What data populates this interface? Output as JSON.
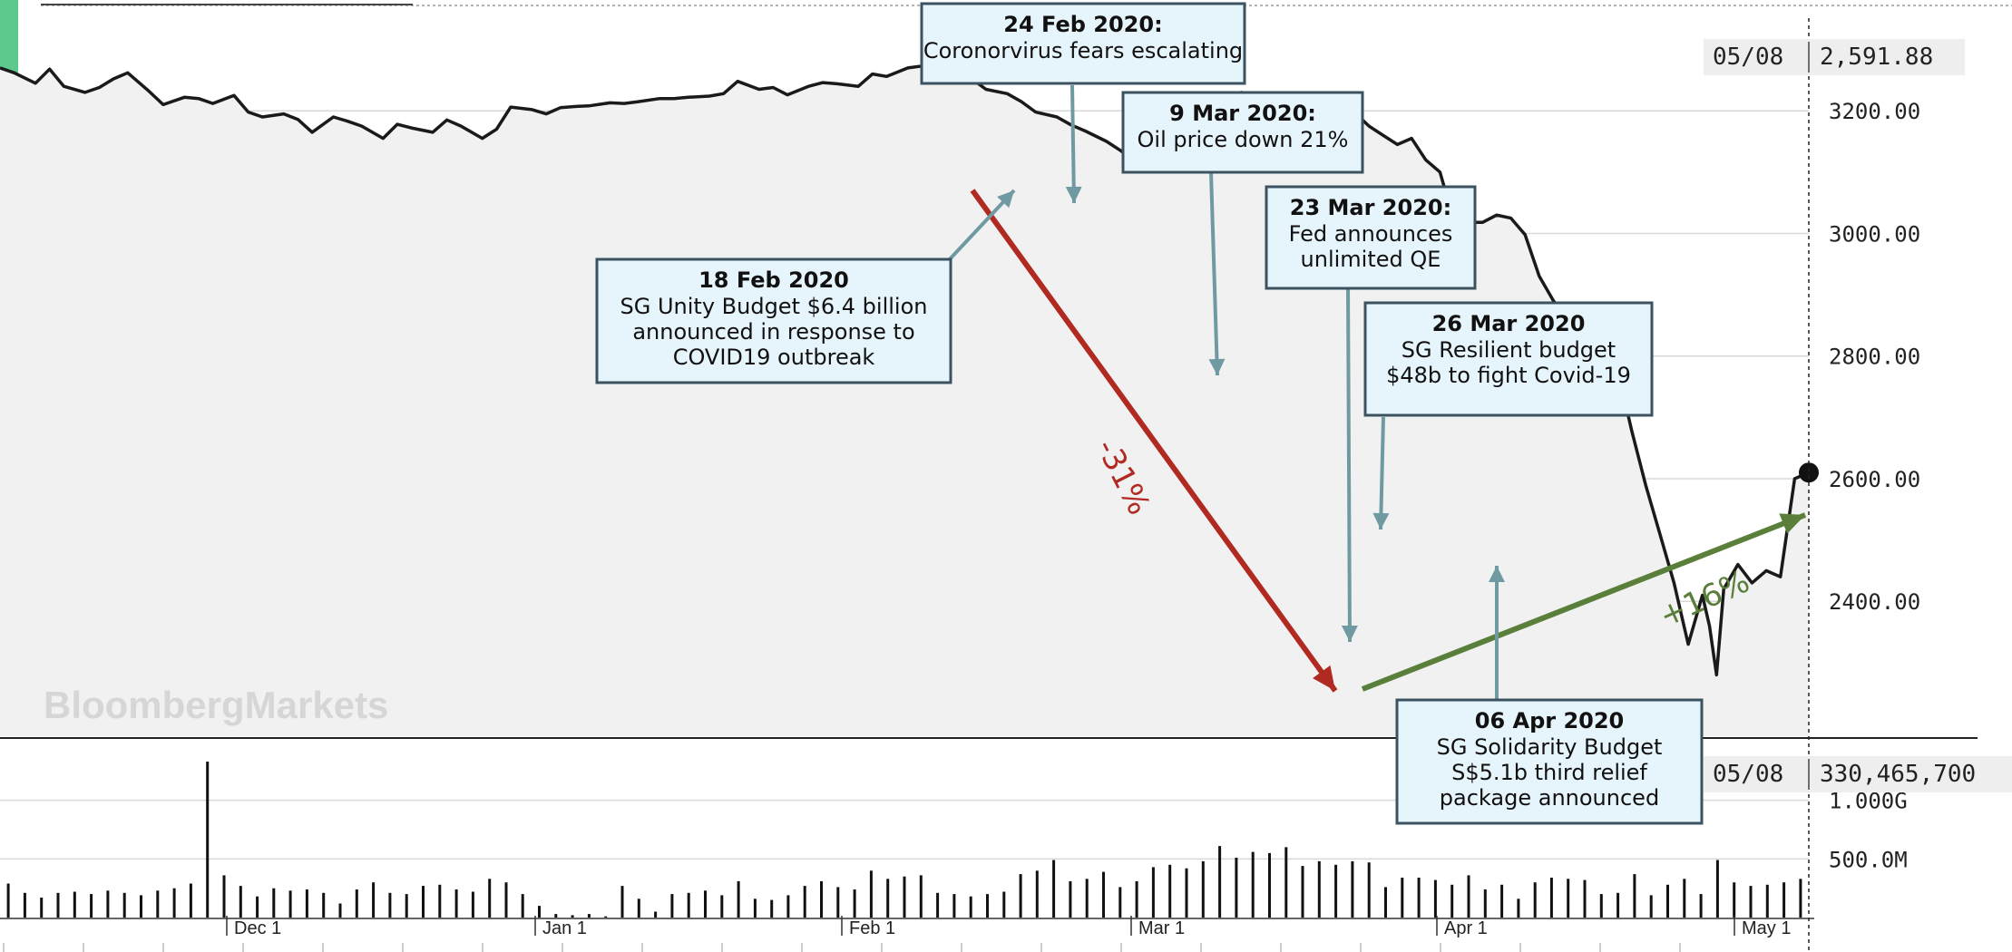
{
  "chart_data": {
    "type": "line",
    "price": {
      "ylim": [
        2180,
        3360
      ],
      "yticks": [
        "3200.00",
        "3000.00",
        "2800.00",
        "2600.00",
        "2400.00"
      ],
      "ytick_values": [
        3200,
        3000,
        2800,
        2600,
        2400
      ],
      "last_date": "05/08",
      "last_value": "2,591.88",
      "x": [
        0,
        2,
        5,
        7,
        9,
        12,
        14,
        16,
        18,
        21,
        23,
        26,
        28,
        30,
        33,
        35,
        37,
        40,
        42,
        44,
        47,
        49,
        51,
        54,
        56,
        58,
        61,
        63,
        65,
        68,
        70,
        72,
        75,
        77,
        79,
        81,
        83,
        86,
        88,
        90,
        93,
        95,
        97,
        100,
        102,
        104,
        107,
        109,
        111,
        114,
        116,
        118,
        121,
        123,
        125,
        128,
        130,
        132,
        135,
        137,
        139,
        142,
        144,
        146,
        149,
        151,
        153,
        156,
        158,
        160,
        162,
        164,
        167,
        169,
        171,
        173,
        175,
        177,
        179,
        181,
        184,
        186,
        188,
        190,
        191,
        193,
        195,
        197,
        199,
        201,
        203,
        205,
        207,
        209,
        211,
        213,
        215,
        217,
        219,
        221,
        224,
        226,
        228,
        230,
        232,
        234,
        236,
        238,
        240,
        241,
        242,
        243,
        245,
        247,
        249,
        251,
        253,
        255
      ],
      "y": [
        3270,
        3262,
        3245,
        3268,
        3240,
        3230,
        3238,
        3252,
        3262,
        3232,
        3210,
        3222,
        3220,
        3212,
        3225,
        3198,
        3190,
        3195,
        3186,
        3165,
        3190,
        3183,
        3175,
        3155,
        3178,
        3172,
        3165,
        3185,
        3175,
        3155,
        3170,
        3206,
        3202,
        3195,
        3205,
        3207,
        3208,
        3213,
        3212,
        3215,
        3220,
        3220,
        3222,
        3224,
        3228,
        3248,
        3235,
        3238,
        3226,
        3240,
        3246,
        3244,
        3240,
        3260,
        3256,
        3270,
        3273,
        3272,
        3248,
        3252,
        3235,
        3228,
        3215,
        3198,
        3190,
        3177,
        3167,
        3150,
        3135,
        3118,
        3178,
        3226,
        3188,
        3185,
        3175,
        3190,
        3230,
        3225,
        3220,
        3218,
        3215,
        3200,
        3180,
        3188,
        3197,
        3175,
        3160,
        3145,
        3155,
        3120,
        3100,
        3020,
        3018,
        3018,
        3030,
        3025,
        2998,
        2930,
        2890,
        2860,
        2790,
        2830,
        2780,
        2680,
        2590,
        2510,
        2430,
        2330,
        2410,
        2360,
        2280,
        2420,
        2460,
        2430,
        2450,
        2440,
        2600,
        2610
      ],
      "x_tail": [
        224,
        226,
        228,
        230,
        232,
        234,
        236,
        238,
        240,
        242,
        244,
        246,
        248,
        250,
        252,
        254,
        256,
        258,
        260,
        262,
        264,
        266,
        268,
        270,
        272,
        274,
        276,
        278,
        280,
        282,
        284,
        286,
        288,
        290,
        292,
        294,
        296,
        298,
        300,
        302,
        304,
        306,
        308,
        310,
        312,
        314,
        316,
        318,
        320,
        322,
        324,
        326,
        328
      ],
      "note": ""
    },
    "volume": {
      "last_date": "05/08",
      "last_value": "330,465,700",
      "yticks": [
        "1.000G",
        "500.0M"
      ],
      "ytick_values": [
        1000000000,
        500000000
      ],
      "ylim": [
        0,
        1500000000
      ],
      "values": [
        290000000,
        210000000,
        170000000,
        210000000,
        220000000,
        200000000,
        230000000,
        210000000,
        190000000,
        230000000,
        250000000,
        290000000,
        1330000000,
        360000000,
        270000000,
        180000000,
        250000000,
        230000000,
        240000000,
        210000000,
        120000000,
        240000000,
        300000000,
        210000000,
        200000000,
        270000000,
        280000000,
        240000000,
        220000000,
        330000000,
        300000000,
        200000000,
        100000000,
        30000000,
        20000000,
        30000000,
        10000000,
        270000000,
        160000000,
        50000000,
        200000000,
        210000000,
        230000000,
        190000000,
        310000000,
        160000000,
        150000000,
        190000000,
        270000000,
        310000000,
        260000000,
        240000000,
        400000000,
        330000000,
        350000000,
        360000000,
        210000000,
        200000000,
        180000000,
        200000000,
        220000000,
        370000000,
        400000000,
        490000000,
        310000000,
        330000000,
        390000000,
        260000000,
        310000000,
        430000000,
        450000000,
        420000000,
        480000000,
        610000000,
        510000000,
        560000000,
        550000000,
        600000000,
        440000000,
        480000000,
        450000000,
        480000000,
        470000000,
        260000000,
        340000000,
        340000000,
        320000000,
        280000000,
        360000000,
        240000000,
        280000000,
        160000000,
        300000000,
        340000000,
        330000000,
        320000000,
        200000000,
        210000000,
        370000000,
        190000000,
        280000000,
        330000000,
        200000000,
        490000000,
        300000000,
        270000000,
        280000000,
        300000000,
        330000000
      ]
    },
    "x_labels": [
      "Dec 1",
      "Jan 1",
      "Feb 1",
      "Mar 1",
      "Apr 1",
      "May 1"
    ],
    "x_label_pos": [
      61,
      121,
      183,
      241,
      301,
      362
    ],
    "x_range": [
      0,
      380
    ],
    "brand_text": "BloombergMarkets",
    "trend_down_label": "-31%",
    "trend_up_label": "+16%",
    "annotations": [
      {
        "title": "24 Feb 2020:",
        "lines": [
          "Coronorvirus fears escalating"
        ]
      },
      {
        "title": "9 Mar 2020:",
        "lines": [
          "Oil price down 21%"
        ]
      },
      {
        "title": "23 Mar 2020:",
        "lines": [
          "Fed announces",
          "unlimited QE"
        ]
      },
      {
        "title": "18 Feb 2020",
        "lines": [
          "SG Unity Budget $6.4 billion",
          "announced in response to",
          "COVID19 outbreak"
        ]
      },
      {
        "title": "26 Mar 2020",
        "lines": [
          "SG Resilient budget",
          "$48b to fight Covid-19"
        ]
      },
      {
        "title": "06 Apr 2020",
        "lines": [
          "SG Solidarity Budget",
          "S$5.1b third relief",
          "package announced"
        ]
      }
    ]
  }
}
